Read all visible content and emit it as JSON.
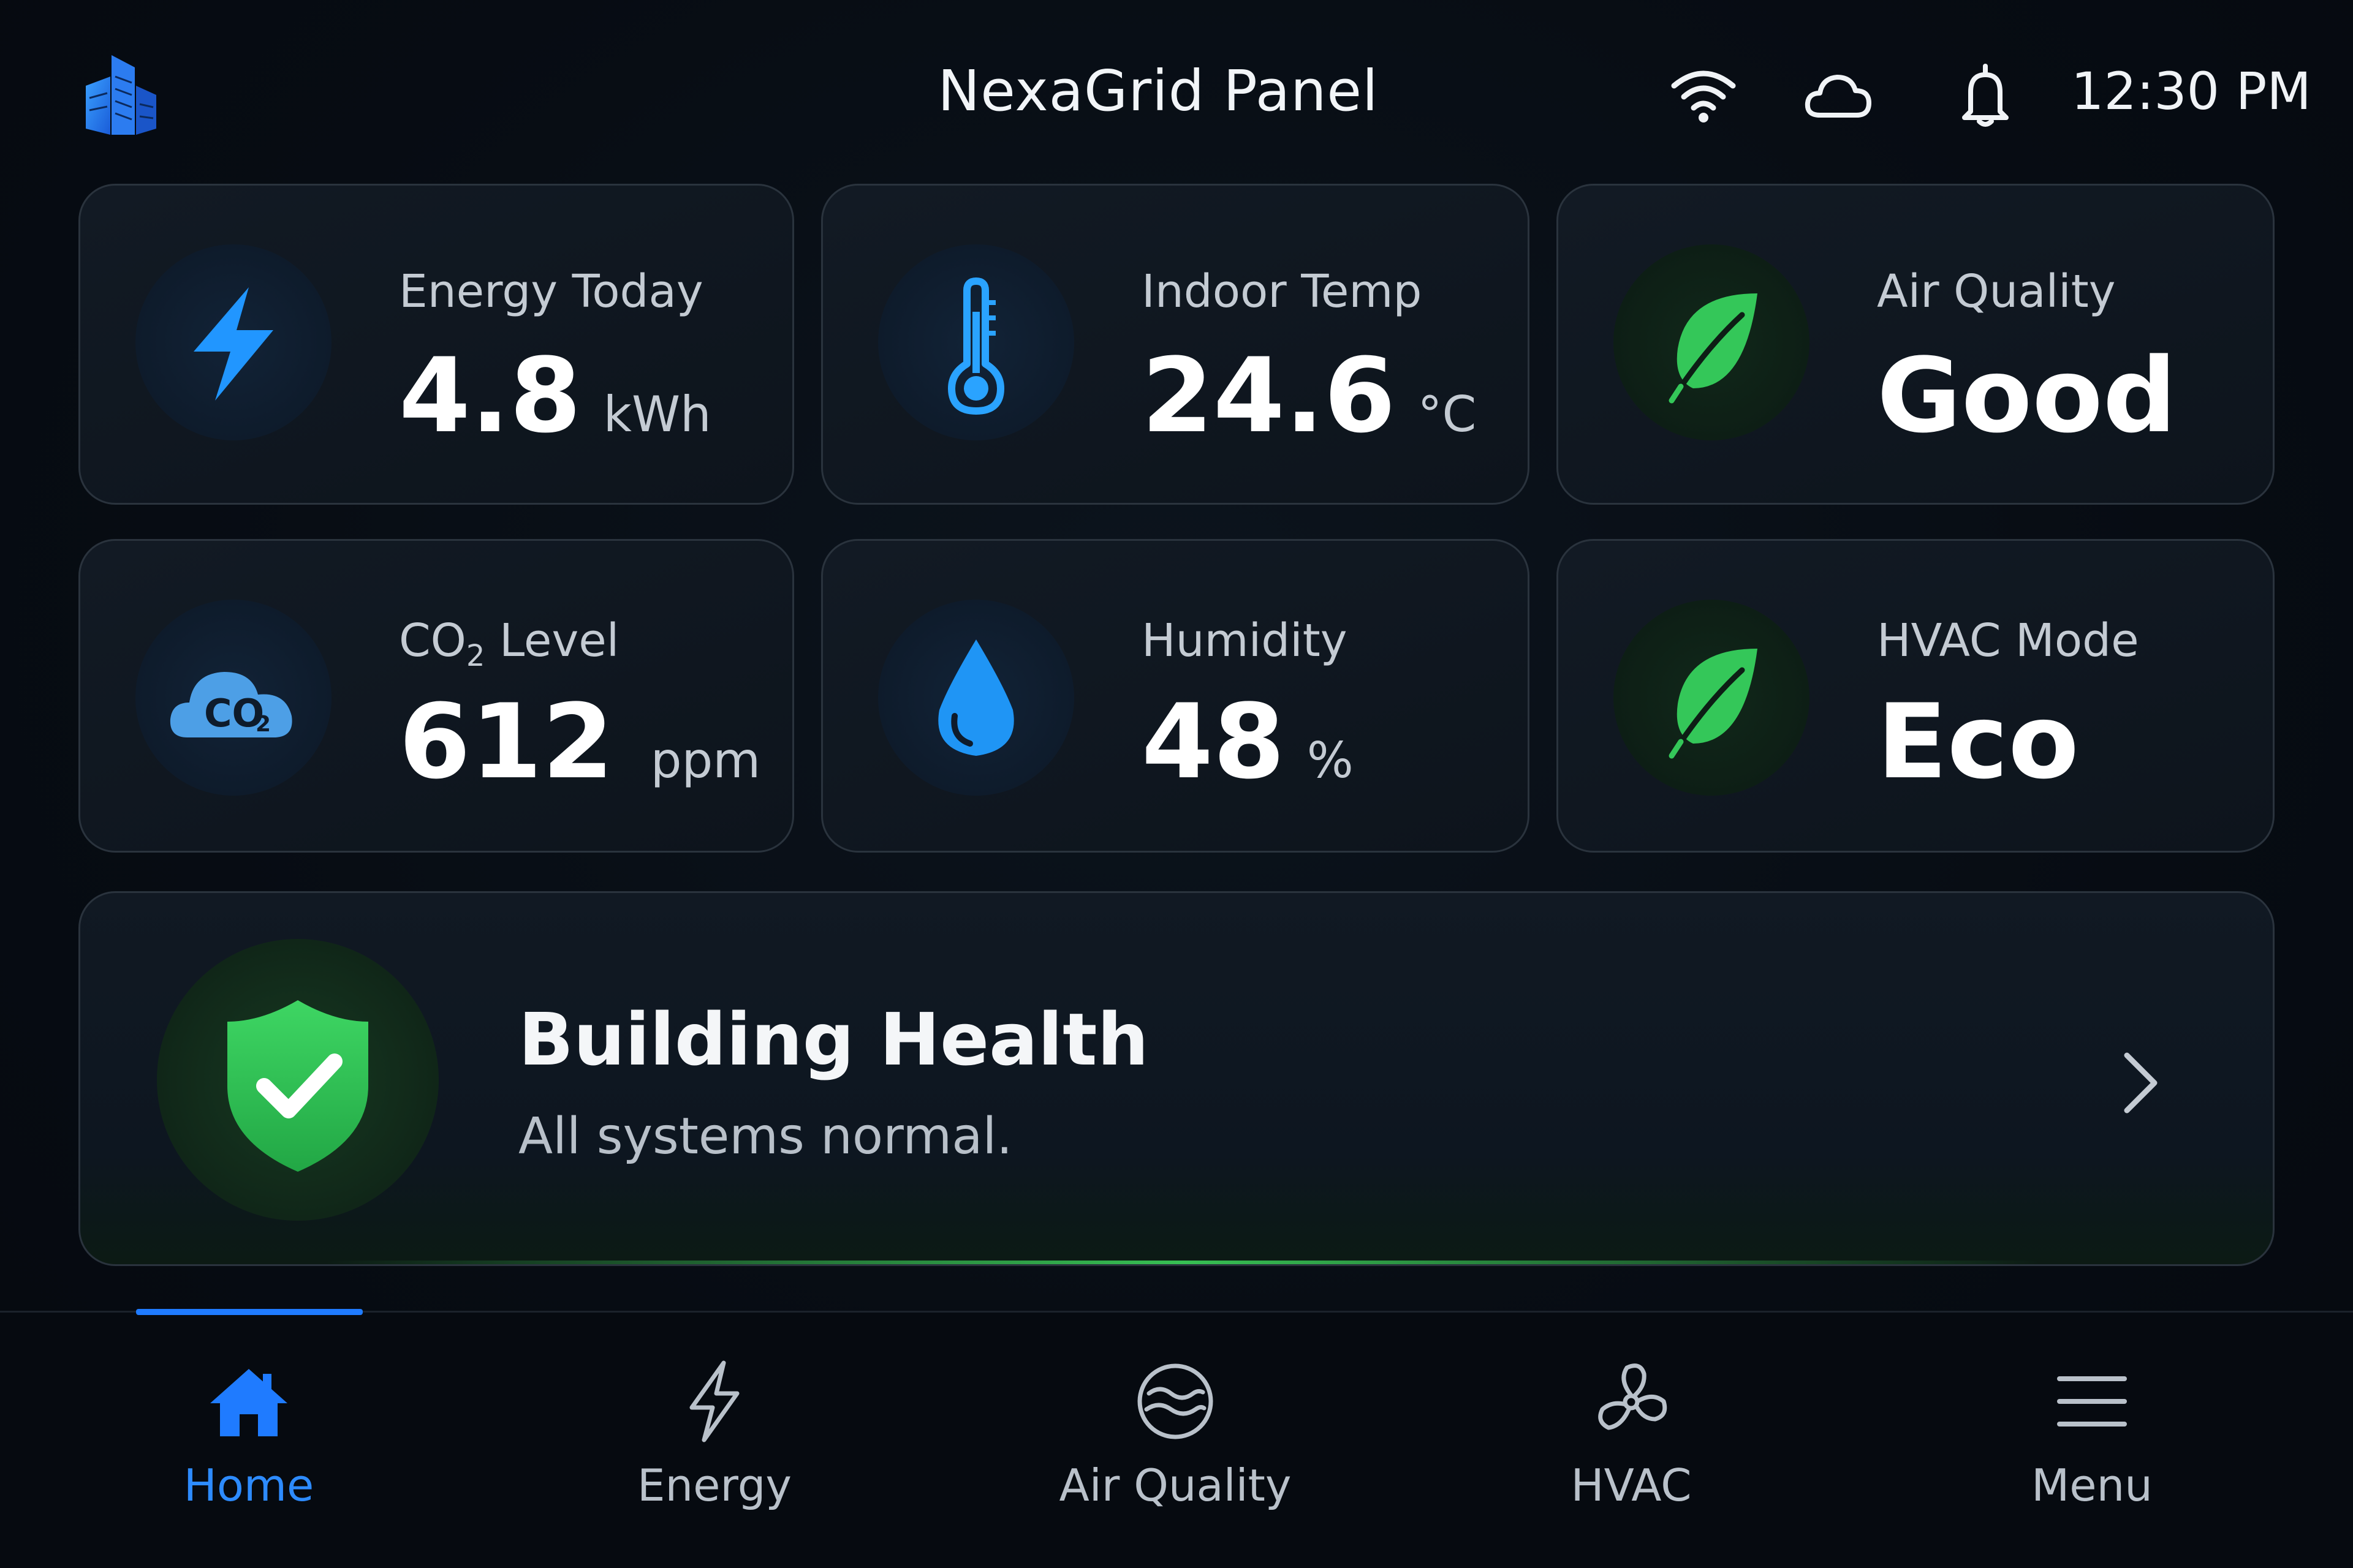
{
  "header": {
    "title": "NexaGrid Panel",
    "time": "12:30 PM",
    "icons": [
      "building-logo-icon",
      "wifi-icon",
      "cloud-icon",
      "bell-icon"
    ]
  },
  "cards": {
    "energy": {
      "label": "Energy Today",
      "value": "4.8",
      "unit": "kWh",
      "icon": "lightning-icon"
    },
    "temp": {
      "label": "Indoor Temp",
      "value": "24.6",
      "unit": "°C",
      "icon": "thermometer-icon"
    },
    "air": {
      "label": "Air Quality",
      "value": "Good",
      "icon": "leaf-icon"
    },
    "co2": {
      "label_main": "CO",
      "label_sub": "2",
      "label_rest": " Level",
      "value": "612",
      "unit": "ppm",
      "icon": "co2-cloud-icon",
      "icon_text": "CO",
      "icon_sub": "2"
    },
    "humidity": {
      "label": "Humidity",
      "value": "48",
      "unit": "%",
      "icon": "water-drop-icon"
    },
    "hvac": {
      "label": "HVAC Mode",
      "value": "Eco",
      "icon": "leaf-icon"
    }
  },
  "health": {
    "title": "Building Health",
    "subtitle": "All systems normal.",
    "icon": "shield-check-icon"
  },
  "nav": {
    "items": [
      {
        "label": "Home",
        "icon": "home-icon",
        "active": true
      },
      {
        "label": "Energy",
        "icon": "lightning-outline-icon"
      },
      {
        "label": "Air Quality",
        "icon": "air-wave-icon"
      },
      {
        "label": "HVAC",
        "icon": "fan-icon"
      },
      {
        "label": "Menu",
        "icon": "hamburger-icon"
      }
    ]
  },
  "colors": {
    "accent_blue": "#1f7bff",
    "accent_green": "#34c759",
    "background": "#060b12"
  }
}
